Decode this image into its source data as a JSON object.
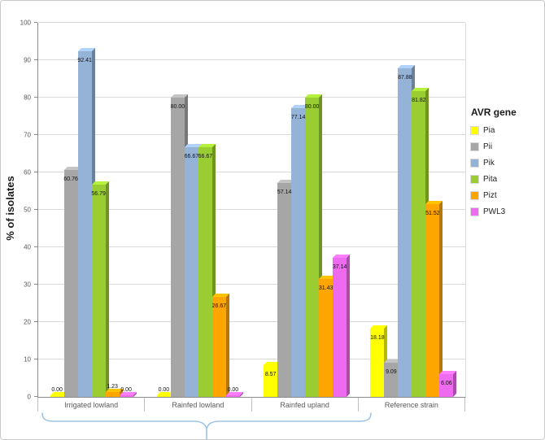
{
  "chart_data": {
    "type": "bar",
    "title": "",
    "ylabel": "% of isolates",
    "ylim": [
      0,
      100
    ],
    "ytick_step": 10,
    "grid": true,
    "legend_title": "AVR gene",
    "legend_position": "right",
    "categories": [
      "Irrigated lowland",
      "Rainfed lowland",
      "Rainfed upland",
      "Reference strain"
    ],
    "series": [
      {
        "name": "Pia",
        "color": "#FFFF00",
        "values": [
          0.0,
          0.0,
          8.57,
          18.18
        ]
      },
      {
        "name": "Pii",
        "color": "#A6A6A6",
        "values": [
          60.76,
          80.0,
          57.14,
          9.09
        ]
      },
      {
        "name": "Pik",
        "color": "#95B3D7",
        "values": [
          92.41,
          66.67,
          77.14,
          87.88
        ]
      },
      {
        "name": "Pita",
        "color": "#9ACD32",
        "values": [
          56.79,
          66.67,
          80.0,
          81.82
        ]
      },
      {
        "name": "Pizt",
        "color": "#FFA500",
        "values": [
          1.23,
          26.67,
          31.43,
          51.52
        ]
      },
      {
        "name": "PWL3",
        "color": "#EE6AEE",
        "values": [
          0.0,
          0.0,
          37.14,
          6.06
        ]
      }
    ],
    "value_label_decimals": 2
  }
}
